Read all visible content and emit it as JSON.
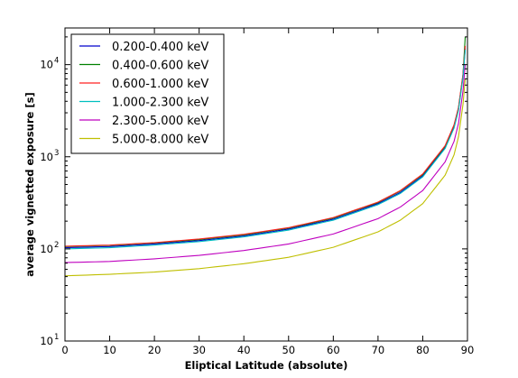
{
  "chart_data": {
    "type": "line",
    "title": "",
    "xlabel": "Eliptical Latitude (absolute)",
    "ylabel": "average vignetted exposure [s]",
    "x": [
      0,
      10,
      20,
      30,
      40,
      50,
      60,
      70,
      75,
      80,
      85,
      87,
      88,
      89,
      89.5
    ],
    "xlim": [
      0,
      90
    ],
    "ylim": [
      10,
      25000
    ],
    "yscale": "log",
    "grid": false,
    "legend_position": "top-left",
    "x_ticks": [
      0,
      10,
      20,
      30,
      40,
      50,
      60,
      70,
      80,
      90
    ],
    "y_ticks": [
      {
        "value": 10,
        "base": "10",
        "exp": "1"
      },
      {
        "value": 100,
        "base": "10",
        "exp": "2"
      },
      {
        "value": 1000,
        "base": "10",
        "exp": "3"
      },
      {
        "value": 10000,
        "base": "10",
        "exp": "4"
      }
    ],
    "series": [
      {
        "name": "0.200-0.400 keV",
        "color": "#0000cc",
        "values": [
          103,
          106,
          113,
          123,
          138,
          164,
          210,
          310,
          410,
          620,
          1250,
          2100,
          3300,
          7500,
          15000
        ]
      },
      {
        "name": "0.400-0.600 keV",
        "color": "#008000",
        "values": [
          106,
          109,
          116,
          126,
          142,
          168,
          216,
          318,
          425,
          640,
          1300,
          2200,
          3400,
          7800,
          20000
        ]
      },
      {
        "name": "0.600-1.000 keV",
        "color": "#ff2020",
        "values": [
          107,
          110,
          117,
          128,
          144,
          170,
          219,
          322,
          430,
          650,
          1320,
          2220,
          3450,
          7900,
          16000
        ]
      },
      {
        "name": "1.000-2.300 keV",
        "color": "#00bfbf",
        "values": [
          100,
          103,
          110,
          120,
          135,
          160,
          205,
          302,
          400,
          605,
          1230,
          2050,
          3200,
          7300,
          14500
        ]
      },
      {
        "name": "2.300-5.000 keV",
        "color": "#bf00bf",
        "values": [
          71,
          73,
          78,
          85,
          96,
          113,
          145,
          213,
          285,
          430,
          880,
          1470,
          2300,
          5200,
          10000
        ]
      },
      {
        "name": "5.000-8.000 keV",
        "color": "#bfbf00",
        "values": [
          51,
          53,
          56,
          61,
          69,
          81,
          104,
          153,
          205,
          310,
          630,
          1050,
          1650,
          3700,
          7000
        ]
      }
    ]
  }
}
